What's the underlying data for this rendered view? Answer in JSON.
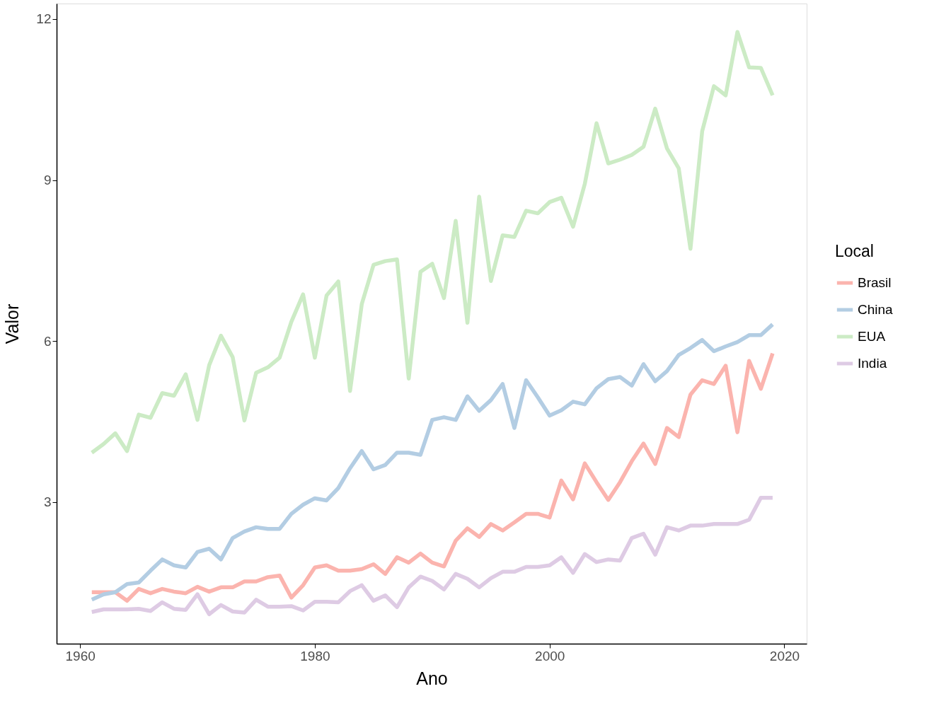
{
  "chart_data": {
    "type": "line",
    "xlabel": "Ano",
    "ylabel": "Valor",
    "legend_title": "Local",
    "legend": "right",
    "grid": false,
    "line_style": "solid",
    "marker": "none",
    "x": [
      1961,
      1962,
      1963,
      1964,
      1965,
      1966,
      1967,
      1968,
      1969,
      1970,
      1971,
      1972,
      1973,
      1974,
      1975,
      1976,
      1977,
      1978,
      1979,
      1980,
      1981,
      1982,
      1983,
      1984,
      1985,
      1986,
      1987,
      1988,
      1989,
      1990,
      1991,
      1992,
      1993,
      1994,
      1995,
      1996,
      1997,
      1998,
      1999,
      2000,
      2001,
      2002,
      2003,
      2004,
      2005,
      2006,
      2007,
      2008,
      2009,
      2010,
      2011,
      2012,
      2013,
      2014,
      2015,
      2016,
      2017,
      2018,
      2019
    ],
    "xlim": [
      1958,
      2021.9
    ],
    "xticks": [
      1960,
      1980,
      2000,
      2020
    ],
    "ylim": [
      0.36,
      12.29
    ],
    "yticks": [
      3,
      6,
      9,
      12
    ],
    "series": [
      {
        "name": "Brasil",
        "color": "#fbb4ae",
        "values": [
          1.32,
          1.32,
          1.32,
          1.16,
          1.38,
          1.3,
          1.38,
          1.33,
          1.3,
          1.42,
          1.33,
          1.41,
          1.41,
          1.52,
          1.52,
          1.6,
          1.63,
          1.22,
          1.45,
          1.78,
          1.82,
          1.72,
          1.72,
          1.75,
          1.84,
          1.66,
          1.97,
          1.87,
          2.04,
          1.87,
          1.8,
          2.28,
          2.51,
          2.35,
          2.59,
          2.47,
          2.62,
          2.78,
          2.78,
          2.71,
          3.4,
          3.05,
          3.72,
          3.37,
          3.04,
          3.37,
          3.76,
          4.09,
          3.71,
          4.38,
          4.21,
          5.0,
          5.27,
          5.2,
          5.54,
          4.3,
          5.63,
          5.11,
          5.77
        ]
      },
      {
        "name": "China",
        "color": "#b3cde3",
        "values": [
          1.18,
          1.28,
          1.32,
          1.47,
          1.5,
          1.72,
          1.93,
          1.82,
          1.78,
          2.07,
          2.13,
          1.93,
          2.33,
          2.45,
          2.53,
          2.5,
          2.5,
          2.78,
          2.95,
          3.07,
          3.03,
          3.26,
          3.63,
          3.95,
          3.61,
          3.69,
          3.92,
          3.92,
          3.88,
          4.53,
          4.58,
          4.53,
          4.97,
          4.7,
          4.9,
          5.2,
          4.38,
          5.27,
          4.95,
          4.61,
          4.71,
          4.87,
          4.82,
          5.12,
          5.29,
          5.33,
          5.17,
          5.57,
          5.25,
          5.44,
          5.74,
          5.87,
          6.02,
          5.81,
          5.9,
          5.98,
          6.11,
          6.11,
          6.31
        ]
      },
      {
        "name": "EUA",
        "color": "#ccebc5",
        "values": [
          3.92,
          4.08,
          4.28,
          3.95,
          4.63,
          4.57,
          5.03,
          4.98,
          5.38,
          4.53,
          5.55,
          6.1,
          5.7,
          4.52,
          5.41,
          5.51,
          5.69,
          6.36,
          6.87,
          5.69,
          6.85,
          7.11,
          5.07,
          6.69,
          7.42,
          7.49,
          7.52,
          5.3,
          7.29,
          7.44,
          6.8,
          8.24,
          6.34,
          8.69,
          7.12,
          7.97,
          7.94,
          8.43,
          8.38,
          8.59,
          8.67,
          8.13,
          8.93,
          10.06,
          9.31,
          9.38,
          9.47,
          9.62,
          10.33,
          9.59,
          9.22,
          7.72,
          9.91,
          10.75,
          10.58,
          11.76,
          11.1,
          11.09,
          10.58
        ]
      },
      {
        "name": "India",
        "color": "#decbe4",
        "values": [
          0.95,
          1.0,
          1.0,
          1.0,
          1.01,
          0.97,
          1.13,
          1.01,
          0.99,
          1.28,
          0.91,
          1.08,
          0.96,
          0.94,
          1.18,
          1.05,
          1.05,
          1.06,
          0.98,
          1.14,
          1.14,
          1.13,
          1.34,
          1.45,
          1.16,
          1.26,
          1.04,
          1.41,
          1.61,
          1.53,
          1.37,
          1.66,
          1.57,
          1.41,
          1.58,
          1.7,
          1.7,
          1.79,
          1.79,
          1.82,
          1.97,
          1.68,
          2.03,
          1.88,
          1.93,
          1.91,
          2.33,
          2.41,
          2.02,
          2.53,
          2.47,
          2.56,
          2.56,
          2.59,
          2.59,
          2.59,
          2.67,
          3.08,
          3.08
        ]
      }
    ]
  }
}
